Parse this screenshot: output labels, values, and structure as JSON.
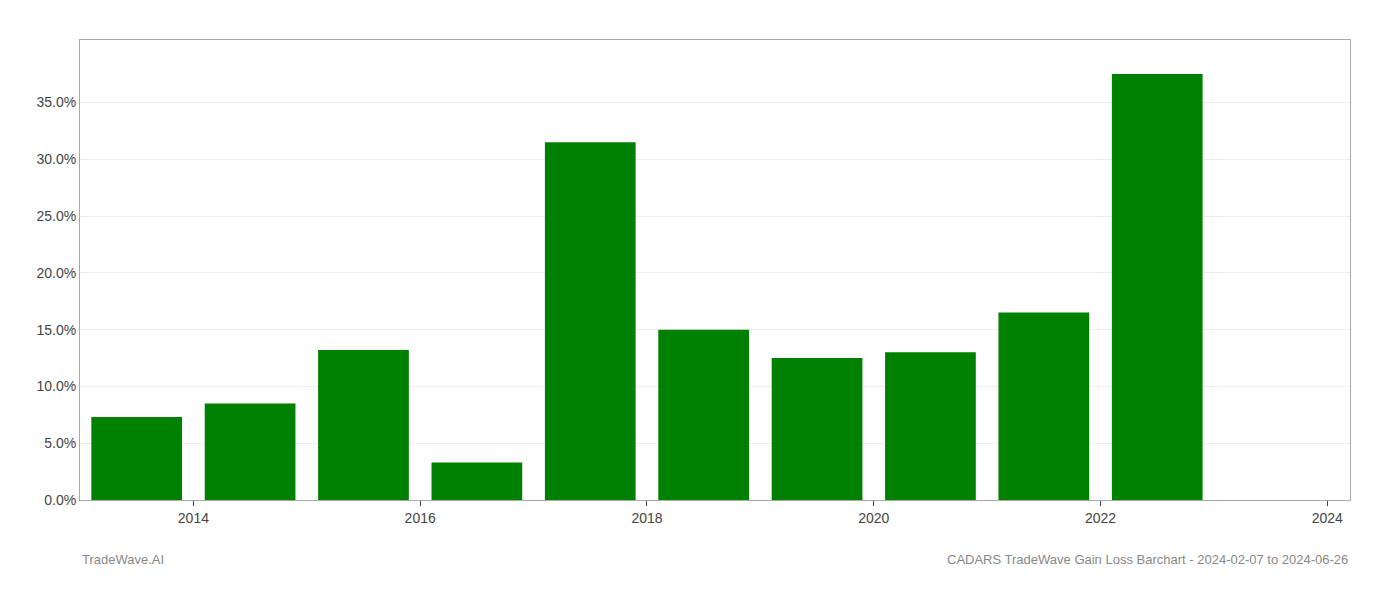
{
  "chart_data": {
    "type": "bar",
    "x": [
      2013.5,
      2014.5,
      2015.5,
      2016.5,
      2017.5,
      2018.5,
      2019.5,
      2020.5,
      2021.5,
      2022.5
    ],
    "values": [
      0.073,
      0.085,
      0.132,
      0.033,
      0.315,
      0.15,
      0.125,
      0.13,
      0.165,
      0.375
    ],
    "color": "#008000",
    "xlim": [
      2013.0,
      2024.2
    ],
    "xticks": [
      2014,
      2016,
      2018,
      2020,
      2022,
      2024
    ],
    "ylim": [
      0.0,
      0.405
    ],
    "yticks": [
      {
        "value": 0.0,
        "label": "0.0%"
      },
      {
        "value": 0.05,
        "label": "5.0%"
      },
      {
        "value": 0.1,
        "label": "10.0%"
      },
      {
        "value": 0.15,
        "label": "15.0%"
      },
      {
        "value": 0.2,
        "label": "20.0%"
      },
      {
        "value": 0.25,
        "label": "25.0%"
      },
      {
        "value": 0.3,
        "label": "30.0%"
      },
      {
        "value": 0.35,
        "label": "35.0%"
      }
    ],
    "grid": true,
    "annotations": [
      "TradeWave.AI",
      "CADARS TradeWave Gain Loss Barchart - 2024-02-07 to 2024-06-26"
    ]
  }
}
